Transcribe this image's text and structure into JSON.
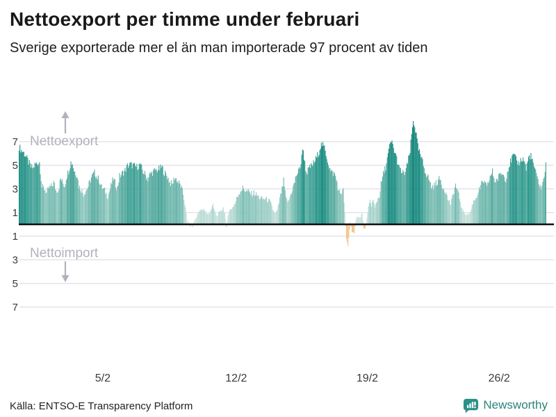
{
  "header": {
    "title": "Nettoexport per timme under februari",
    "subtitle": "Sverige exporterade mer el än man importerade 97 procent av tiden"
  },
  "footer": {
    "source": "Källa: ENTSO-E Transparency Platform",
    "brand": "Newsworthy"
  },
  "chart_data": {
    "type": "bar",
    "title": "Nettoexport per timme under februari",
    "subtitle": "Sverige exporterade mer el än man importerade 97 procent av tiden",
    "x_unit": "hours of February (28 days, 672 hourly bars)",
    "y_unit": "GW net export (positive) / net import (negative)",
    "ylim": [
      -8,
      9
    ],
    "grid": true,
    "y_ticks": [
      {
        "value": 7,
        "label": "7"
      },
      {
        "value": 5,
        "label": "5"
      },
      {
        "value": 3,
        "label": "3"
      },
      {
        "value": 1,
        "label": "1"
      },
      {
        "value": -1,
        "label": "1"
      },
      {
        "value": -3,
        "label": "3"
      },
      {
        "value": -5,
        "label": "5"
      },
      {
        "value": -7,
        "label": "7"
      }
    ],
    "x_ticks": [
      {
        "label": "5/2",
        "hour": 107
      },
      {
        "label": "12/2",
        "hour": 277
      },
      {
        "label": "19/2",
        "hour": 444
      },
      {
        "label": "26/2",
        "hour": 612
      }
    ],
    "direction_labels": {
      "up": "Nettoexport",
      "down": "Nettoimport"
    },
    "hours_total": 672,
    "anchors_hour_value": [
      [
        0,
        6.6
      ],
      [
        3,
        6.3
      ],
      [
        5,
        6.2
      ],
      [
        8,
        5.9
      ],
      [
        12,
        5.3
      ],
      [
        15,
        4.9
      ],
      [
        18,
        4.8
      ],
      [
        20,
        5.1
      ],
      [
        23,
        5.2
      ],
      [
        26,
        5.3
      ],
      [
        27,
        4.6
      ],
      [
        29,
        3.2
      ],
      [
        33,
        3.0
      ],
      [
        35,
        2.7
      ],
      [
        38,
        3.1
      ],
      [
        42,
        3.3
      ],
      [
        44,
        3.6
      ],
      [
        47,
        2.9
      ],
      [
        50,
        3.0
      ],
      [
        53,
        3.9
      ],
      [
        56,
        3.5
      ],
      [
        58,
        3.3
      ],
      [
        60,
        4.0
      ],
      [
        64,
        4.8
      ],
      [
        66,
        5.3
      ],
      [
        68,
        5.2
      ],
      [
        70,
        4.6
      ],
      [
        74,
        4.2
      ],
      [
        76,
        3.3
      ],
      [
        80,
        2.9
      ],
      [
        82,
        2.6
      ],
      [
        87,
        3.1
      ],
      [
        90,
        3.6
      ],
      [
        92,
        4.0
      ],
      [
        96,
        4.4
      ],
      [
        98,
        4.2
      ],
      [
        102,
        3.8
      ],
      [
        105,
        3.2
      ],
      [
        109,
        2.9
      ],
      [
        113,
        2.4
      ],
      [
        117,
        3.3
      ],
      [
        120,
        3.9
      ],
      [
        123,
        3.4
      ],
      [
        125,
        3.1
      ],
      [
        128,
        4.1
      ],
      [
        132,
        4.4
      ],
      [
        135,
        4.6
      ],
      [
        138,
        5.0
      ],
      [
        142,
        5.1
      ],
      [
        146,
        5.0
      ],
      [
        150,
        4.9
      ],
      [
        154,
        5.1
      ],
      [
        158,
        4.5
      ],
      [
        161,
        4.2
      ],
      [
        164,
        3.9
      ],
      [
        167,
        4.3
      ],
      [
        171,
        4.5
      ],
      [
        174,
        4.6
      ],
      [
        178,
        4.7
      ],
      [
        182,
        4.9
      ],
      [
        185,
        4.4
      ],
      [
        189,
        4.1
      ],
      [
        192,
        3.6
      ],
      [
        195,
        3.4
      ],
      [
        198,
        4.0
      ],
      [
        200,
        3.9
      ],
      [
        204,
        3.5
      ],
      [
        206,
        3.3
      ],
      [
        209,
        2.6
      ],
      [
        211,
        1.8
      ],
      [
        213,
        0.9
      ],
      [
        214,
        0.4
      ],
      [
        216,
        0.2
      ],
      [
        218,
        -0.15
      ],
      [
        220,
        0.1
      ],
      [
        221,
        -0.2
      ],
      [
        223,
        0.3
      ],
      [
        226,
        0.7
      ],
      [
        228,
        1.0
      ],
      [
        232,
        1.25
      ],
      [
        236,
        1.35
      ],
      [
        238,
        1.0
      ],
      [
        241,
        0.85
      ],
      [
        244,
        1.3
      ],
      [
        247,
        1.6
      ],
      [
        250,
        1.0
      ],
      [
        252,
        0.75
      ],
      [
        256,
        1.1
      ],
      [
        260,
        1.45
      ],
      [
        262,
        1.0
      ],
      [
        264,
        -0.2
      ],
      [
        266,
        0.9
      ],
      [
        268,
        1.2
      ],
      [
        272,
        1.5
      ],
      [
        275,
        1.8
      ],
      [
        278,
        2.4
      ],
      [
        282,
        2.9
      ],
      [
        285,
        3.1
      ],
      [
        289,
        2.9
      ],
      [
        292,
        2.8
      ],
      [
        296,
        2.6
      ],
      [
        299,
        2.7
      ],
      [
        303,
        2.5
      ],
      [
        306,
        2.3
      ],
      [
        310,
        2.2
      ],
      [
        314,
        2.2
      ],
      [
        317,
        2.1
      ],
      [
        320,
        1.9
      ],
      [
        323,
        1.3
      ],
      [
        326,
        0.95
      ],
      [
        329,
        1.2
      ],
      [
        332,
        2.2
      ],
      [
        335,
        3.0
      ],
      [
        337,
        3.7
      ],
      [
        340,
        2.2
      ],
      [
        343,
        1.9
      ],
      [
        345,
        2.4
      ],
      [
        348,
        3.0
      ],
      [
        351,
        3.6
      ],
      [
        353,
        4.2
      ],
      [
        356,
        4.5
      ],
      [
        359,
        5.2
      ],
      [
        360,
        6.0
      ],
      [
        362,
        6.3
      ],
      [
        364,
        5.2
      ],
      [
        366,
        4.4
      ],
      [
        368,
        4.6
      ],
      [
        371,
        4.9
      ],
      [
        374,
        5.1
      ],
      [
        376,
        5.3
      ],
      [
        379,
        5.7
      ],
      [
        382,
        6.2
      ],
      [
        384,
        6.7
      ],
      [
        386,
        6.8
      ],
      [
        389,
        6.5
      ],
      [
        391,
        6.0
      ],
      [
        394,
        5.2
      ],
      [
        397,
        4.5
      ],
      [
        399,
        4.4
      ],
      [
        402,
        4.3
      ],
      [
        405,
        3.6
      ],
      [
        407,
        2.8
      ],
      [
        410,
        2.7
      ],
      [
        413,
        2.9
      ],
      [
        415,
        1.0
      ],
      [
        417,
        -1.2
      ],
      [
        419,
        -1.8
      ],
      [
        421,
        -0.4
      ],
      [
        422,
        0.3
      ],
      [
        424,
        -0.6
      ],
      [
        427,
        -0.7
      ],
      [
        429,
        0.4
      ],
      [
        431,
        0.8
      ],
      [
        434,
        0.6
      ],
      [
        437,
        1.0
      ],
      [
        439,
        -0.3
      ],
      [
        441,
        -0.3
      ],
      [
        443,
        0.5
      ],
      [
        445,
        1.4
      ],
      [
        447,
        2.0
      ],
      [
        449,
        1.7
      ],
      [
        451,
        2.1
      ],
      [
        453,
        1.4
      ],
      [
        455,
        1.9
      ],
      [
        459,
        2.5
      ],
      [
        461,
        3.4
      ],
      [
        464,
        4.3
      ],
      [
        467,
        4.9
      ],
      [
        469,
        5.6
      ],
      [
        472,
        6.6
      ],
      [
        474,
        7.0
      ],
      [
        476,
        6.8
      ],
      [
        477,
        6.4
      ],
      [
        479,
        6.1
      ],
      [
        482,
        5.4
      ],
      [
        484,
        4.8
      ],
      [
        487,
        4.5
      ],
      [
        490,
        4.3
      ],
      [
        492,
        4.5
      ],
      [
        495,
        5.2
      ],
      [
        498,
        6.2
      ],
      [
        500,
        7.6
      ],
      [
        502,
        8.8
      ],
      [
        504,
        8.4
      ],
      [
        506,
        7.6
      ],
      [
        508,
        6.6
      ],
      [
        511,
        5.9
      ],
      [
        514,
        5.3
      ],
      [
        516,
        4.8
      ],
      [
        519,
        4.3
      ],
      [
        522,
        3.9
      ],
      [
        525,
        3.2
      ],
      [
        529,
        3.3
      ],
      [
        532,
        3.6
      ],
      [
        536,
        3.9
      ],
      [
        539,
        3.3
      ],
      [
        543,
        2.9
      ],
      [
        546,
        2.2
      ],
      [
        550,
        1.7
      ],
      [
        553,
        2.6
      ],
      [
        556,
        3.4
      ],
      [
        559,
        2.7
      ],
      [
        561,
        2.3
      ],
      [
        564,
        1.3
      ],
      [
        568,
        1.0
      ],
      [
        571,
        0.85
      ],
      [
        575,
        1.1
      ],
      [
        578,
        1.9
      ],
      [
        582,
        2.3
      ],
      [
        585,
        2.8
      ],
      [
        589,
        3.4
      ],
      [
        592,
        3.7
      ],
      [
        596,
        3.1
      ],
      [
        599,
        3.9
      ],
      [
        603,
        4.5
      ],
      [
        606,
        3.7
      ],
      [
        610,
        3.9
      ],
      [
        614,
        4.4
      ],
      [
        617,
        4.2
      ],
      [
        620,
        3.9
      ],
      [
        623,
        4.8
      ],
      [
        627,
        5.5
      ],
      [
        630,
        5.9
      ],
      [
        633,
        5.5
      ],
      [
        636,
        5.2
      ],
      [
        638,
        5.4
      ],
      [
        641,
        5.6
      ],
      [
        644,
        5.4
      ],
      [
        646,
        4.7
      ],
      [
        649,
        5.7
      ],
      [
        652,
        5.9
      ],
      [
        654,
        5.3
      ],
      [
        657,
        4.8
      ],
      [
        659,
        4.1
      ],
      [
        662,
        3.6
      ],
      [
        665,
        3.1
      ],
      [
        667,
        3.4
      ],
      [
        669,
        4.3
      ],
      [
        671,
        5.0
      ]
    ],
    "colors": {
      "positive_gradient_stops": [
        [
          0,
          "#d9ebe6"
        ],
        [
          1.5,
          "#b4d9d2"
        ],
        [
          3,
          "#7fc0b6"
        ],
        [
          4.5,
          "#54a99e"
        ],
        [
          5.5,
          "#2d998d"
        ],
        [
          6.5,
          "#15897f"
        ],
        [
          9,
          "#0e8276"
        ]
      ],
      "negative": "#f4c287",
      "gridline": "#dcdce3",
      "zero_line": "#161616",
      "axis_text": "#3a3a3a",
      "direction_label": "#b2b2bd",
      "brand_teal": "#28847c"
    }
  }
}
